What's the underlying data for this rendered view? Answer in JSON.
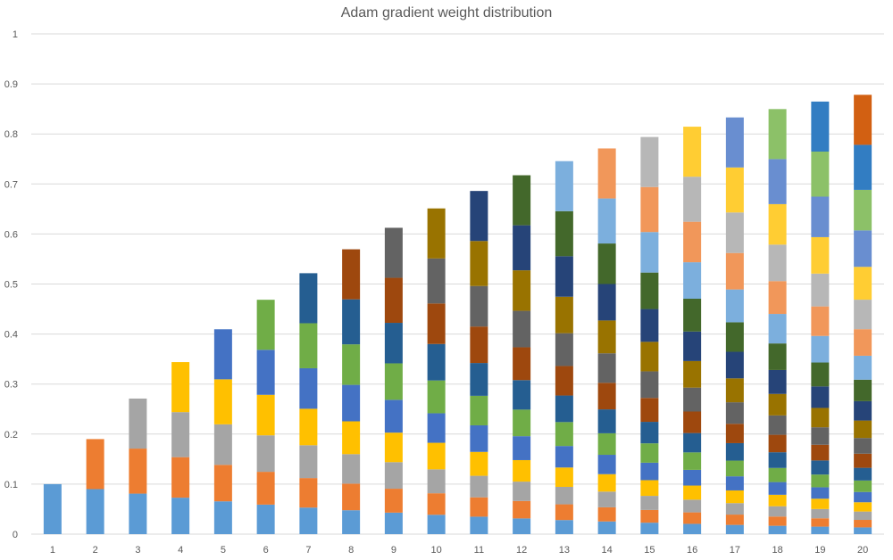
{
  "chart_data": {
    "type": "bar",
    "stacked": true,
    "title": "Adam gradient weight distribution",
    "xlabel": "",
    "ylabel": "",
    "ylim": [
      0,
      1
    ],
    "y_ticks": [
      "0",
      "0.1",
      "0.2",
      "0.3",
      "0.4",
      "0.5",
      "0.6",
      "0.7",
      "0.8",
      "0.9",
      "1"
    ],
    "categories": [
      "1",
      "2",
      "3",
      "4",
      "5",
      "6",
      "7",
      "8",
      "9",
      "10",
      "11",
      "12",
      "13",
      "14",
      "15",
      "16",
      "17",
      "18",
      "19",
      "20"
    ],
    "grid": true,
    "legend": "none",
    "beta": 0.9,
    "segment_colors": [
      "#5b9bd5",
      "#ed7d31",
      "#a5a5a5",
      "#ffc000",
      "#4472c4",
      "#70ad47",
      "#255e91",
      "#9e480e",
      "#636363",
      "#997300",
      "#264478",
      "#43682b",
      "#7cafdd",
      "#f1975a",
      "#b7b7b7",
      "#ffcd33",
      "#698ed0",
      "#8cc168",
      "#327dc2",
      "#d26012"
    ],
    "stack_values": [
      [
        0.1
      ],
      [
        0.09,
        0.1
      ],
      [
        0.081,
        0.09,
        0.1
      ],
      [
        0.0729,
        0.081,
        0.09,
        0.1
      ],
      [
        0.0656,
        0.0729,
        0.081,
        0.09,
        0.1
      ],
      [
        0.059,
        0.0656,
        0.0729,
        0.081,
        0.09,
        0.1
      ],
      [
        0.0531,
        0.059,
        0.0656,
        0.0729,
        0.081,
        0.09,
        0.1
      ],
      [
        0.0478,
        0.0531,
        0.059,
        0.0656,
        0.0729,
        0.081,
        0.09,
        0.1
      ],
      [
        0.043,
        0.0478,
        0.0531,
        0.059,
        0.0656,
        0.0729,
        0.081,
        0.09,
        0.1
      ],
      [
        0.0387,
        0.043,
        0.0478,
        0.0531,
        0.059,
        0.0656,
        0.0729,
        0.081,
        0.09,
        0.1
      ],
      [
        0.0349,
        0.0387,
        0.043,
        0.0478,
        0.0531,
        0.059,
        0.0656,
        0.0729,
        0.081,
        0.09,
        0.1
      ],
      [
        0.0314,
        0.0349,
        0.0387,
        0.043,
        0.0478,
        0.0531,
        0.059,
        0.0656,
        0.0729,
        0.081,
        0.09,
        0.1
      ],
      [
        0.0282,
        0.0314,
        0.0349,
        0.0387,
        0.043,
        0.0478,
        0.0531,
        0.059,
        0.0656,
        0.0729,
        0.081,
        0.09,
        0.1
      ],
      [
        0.0254,
        0.0282,
        0.0314,
        0.0349,
        0.0387,
        0.043,
        0.0478,
        0.0531,
        0.059,
        0.0656,
        0.0729,
        0.081,
        0.09,
        0.1
      ],
      [
        0.0229,
        0.0254,
        0.0282,
        0.0314,
        0.0349,
        0.0387,
        0.043,
        0.0478,
        0.0531,
        0.059,
        0.0656,
        0.0729,
        0.081,
        0.09,
        0.1
      ],
      [
        0.0206,
        0.0229,
        0.0254,
        0.0282,
        0.0314,
        0.0349,
        0.0387,
        0.043,
        0.0478,
        0.0531,
        0.059,
        0.0656,
        0.0729,
        0.081,
        0.09,
        0.1
      ],
      [
        0.0185,
        0.0206,
        0.0229,
        0.0254,
        0.0282,
        0.0314,
        0.0349,
        0.0387,
        0.043,
        0.0478,
        0.0531,
        0.059,
        0.0656,
        0.0729,
        0.081,
        0.09,
        0.1
      ],
      [
        0.0167,
        0.0185,
        0.0206,
        0.0229,
        0.0254,
        0.0282,
        0.0314,
        0.0349,
        0.0387,
        0.043,
        0.0478,
        0.0531,
        0.059,
        0.0656,
        0.0729,
        0.081,
        0.09,
        0.1
      ],
      [
        0.015,
        0.0167,
        0.0185,
        0.0206,
        0.0229,
        0.0254,
        0.0282,
        0.0314,
        0.0349,
        0.0387,
        0.043,
        0.0478,
        0.0531,
        0.059,
        0.0656,
        0.0729,
        0.081,
        0.09,
        0.1
      ],
      [
        0.0135,
        0.015,
        0.0167,
        0.0185,
        0.0206,
        0.0229,
        0.0254,
        0.0282,
        0.0314,
        0.0349,
        0.0387,
        0.043,
        0.0478,
        0.0531,
        0.059,
        0.0656,
        0.0729,
        0.081,
        0.09,
        0.1
      ]
    ],
    "totals": [
      0.1,
      0.19,
      0.271,
      0.344,
      0.41,
      0.469,
      0.522,
      0.57,
      0.613,
      0.651,
      0.686,
      0.718,
      0.746,
      0.771,
      0.794,
      0.815,
      0.833,
      0.85,
      0.865,
      0.878
    ]
  }
}
